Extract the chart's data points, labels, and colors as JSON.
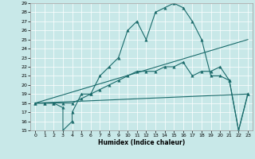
{
  "xlabel": "Humidex (Indice chaleur)",
  "xlim": [
    -0.5,
    23.5
  ],
  "ylim": [
    15,
    29
  ],
  "xticks": [
    0,
    1,
    2,
    3,
    4,
    5,
    6,
    7,
    8,
    9,
    10,
    11,
    12,
    13,
    14,
    15,
    16,
    17,
    18,
    19,
    20,
    21,
    22,
    23
  ],
  "yticks": [
    15,
    16,
    17,
    18,
    19,
    20,
    21,
    22,
    23,
    24,
    25,
    26,
    27,
    28,
    29
  ],
  "bg_color": "#c8e8e8",
  "line_color": "#1a6b6b",
  "grid_color": "#ffffff",
  "line1_x": [
    0,
    1,
    2,
    3,
    3,
    4,
    4,
    5,
    6,
    7,
    8,
    9,
    10,
    11,
    12,
    13,
    14,
    15,
    16,
    17,
    18,
    19,
    20,
    21,
    22,
    23
  ],
  "line1_y": [
    18,
    18,
    18,
    17.5,
    15,
    16,
    17,
    19,
    19,
    21,
    22,
    23,
    26,
    27,
    25,
    28,
    28.5,
    29,
    28.5,
    27,
    25,
    21,
    21,
    20.5,
    15,
    19
  ],
  "line1_markers_x": [
    0,
    1,
    2,
    3,
    5,
    6,
    7,
    8,
    9,
    10,
    11,
    12,
    13,
    14,
    15,
    16,
    17,
    18,
    19,
    20,
    21,
    22,
    23
  ],
  "line1_markers_y": [
    18,
    18,
    18,
    17.5,
    19,
    19,
    21,
    22,
    23,
    26,
    27,
    25,
    28,
    28.5,
    29,
    28.5,
    27,
    25,
    21,
    21,
    20.5,
    15,
    19
  ],
  "line2_x": [
    0,
    1,
    2,
    3,
    4,
    5,
    6,
    7,
    8,
    9,
    10,
    11,
    12,
    13,
    14,
    15,
    16,
    17,
    18,
    19,
    20,
    21,
    22,
    23
  ],
  "line2_y": [
    18,
    18,
    18,
    18,
    18,
    18.5,
    19,
    19.5,
    20,
    20.5,
    21,
    21.5,
    21.5,
    21.5,
    22,
    22,
    22.5,
    21,
    21.5,
    21.5,
    22,
    20.5,
    15,
    19
  ],
  "line2_markers_x": [
    0,
    1,
    2,
    3,
    4,
    5,
    6,
    7,
    8,
    9,
    10,
    11,
    12,
    13,
    14,
    15,
    16,
    17,
    18,
    19,
    20,
    21,
    22,
    23
  ],
  "line2_markers_y": [
    18,
    18,
    18,
    18,
    18,
    18.5,
    19,
    19.5,
    20,
    20.5,
    21,
    21.5,
    21.5,
    21.5,
    22,
    22,
    22.5,
    21,
    21.5,
    21.5,
    22,
    20.5,
    15,
    19
  ],
  "line3_x": [
    0,
    23
  ],
  "line3_y": [
    18,
    25
  ],
  "line4_x": [
    0,
    23
  ],
  "line4_y": [
    18,
    19
  ]
}
